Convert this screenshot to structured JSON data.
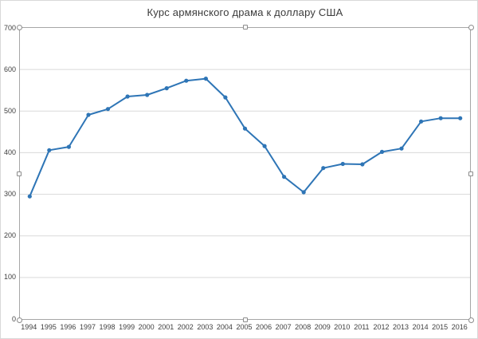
{
  "chart_data": {
    "type": "line",
    "title": "Курс армянского драма к доллару США",
    "x": [
      1994,
      1995,
      1996,
      1997,
      1998,
      1999,
      2000,
      2001,
      2002,
      2003,
      2004,
      2005,
      2006,
      2007,
      2008,
      2009,
      2010,
      2011,
      2012,
      2013,
      2014,
      2015,
      2016
    ],
    "values": [
      295,
      406,
      414,
      491,
      505,
      535,
      539,
      555,
      573,
      578,
      533,
      458,
      416,
      342,
      305,
      363,
      373,
      372,
      402,
      410,
      475,
      483,
      483
    ],
    "xlabel": "",
    "ylabel": "",
    "ylim": [
      0,
      700
    ],
    "yticks": [
      0,
      100,
      200,
      300,
      400,
      500,
      600,
      700
    ],
    "grid": "horizontal",
    "legend": "none",
    "marker": "circle",
    "selection_state": "plot-area-selected",
    "colors": {
      "line": "#2E75B6",
      "gridline": "#D9D9D9",
      "plot_border": "#A6A6A6",
      "chart_border": "#D9D9D9",
      "tick_label": "#404040",
      "title": "#3B3B3B",
      "background": "#FFFFFF"
    }
  }
}
